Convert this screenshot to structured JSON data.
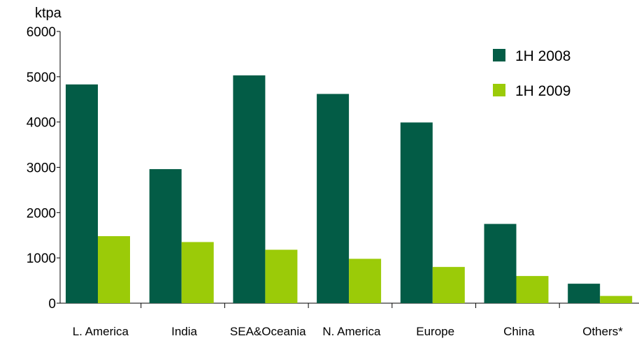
{
  "chart_data": {
    "type": "bar",
    "unit_label": "ktpa",
    "categories": [
      "L. America",
      "India",
      "SEA&Oceania",
      "N. America",
      "Europe",
      "China",
      "Others*"
    ],
    "series": [
      {
        "name": "1H 2008",
        "color": "#035c46",
        "values": [
          4830,
          2960,
          5030,
          4620,
          3990,
          1750,
          430
        ]
      },
      {
        "name": "1H 2009",
        "color": "#9bcb08",
        "values": [
          1480,
          1350,
          1180,
          980,
          800,
          600,
          160
        ]
      }
    ],
    "ylim": [
      0,
      6000
    ],
    "yticks": [
      0,
      1000,
      2000,
      3000,
      4000,
      5000,
      6000
    ],
    "grid": false,
    "legend_position": "top-right"
  }
}
